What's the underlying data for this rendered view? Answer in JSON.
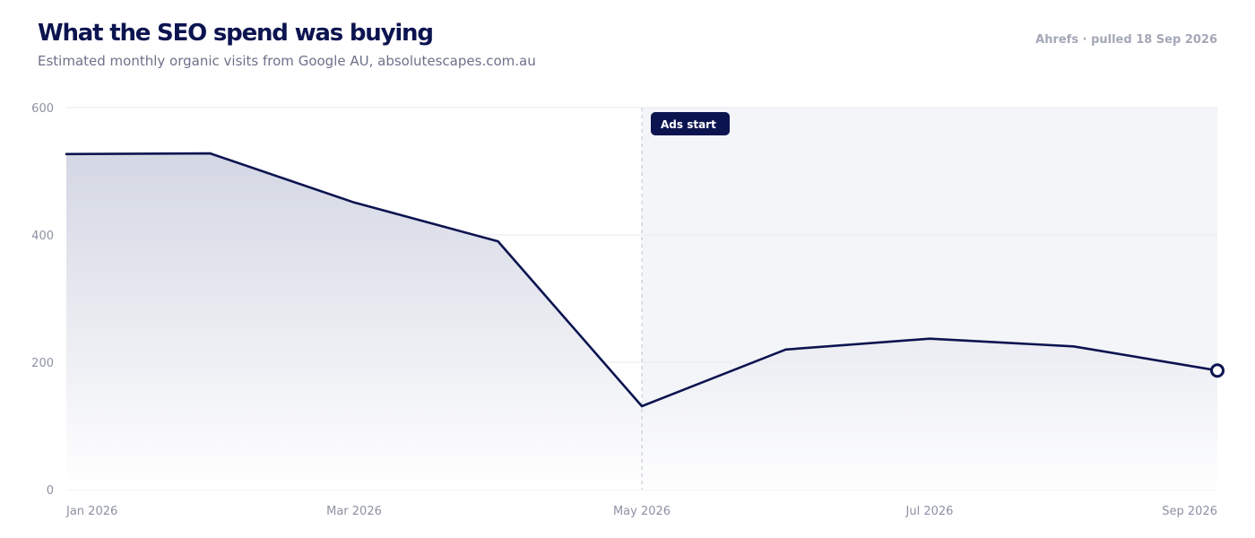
{
  "header": {
    "title": "What the SEO spend was buying",
    "subtitle": "Estimated monthly organic visits from Google AU, absolutescapes.com.au",
    "source": "Ahrefs · pulled 18 Sep 2026"
  },
  "colors": {
    "line": "#0c1450",
    "area_top": "#cfd3e1",
    "area_bottom": "#ffffff",
    "ads_band": "#f3f5f8",
    "grid": "#e9eaef",
    "annotation_bg": "#0c1450",
    "marker_fill": "#ffffff"
  },
  "chart_data": {
    "type": "area",
    "x": [
      "2026-01",
      "2026-02",
      "2026-03",
      "2026-04",
      "2026-05",
      "2026-06",
      "2026-07",
      "2026-08",
      "2026-09"
    ],
    "series": [
      {
        "values": [
          527,
          528,
          451,
          390,
          131,
          220,
          237,
          225,
          187
        ]
      }
    ],
    "x_tick_labels": [
      "Jan 2026",
      "Mar 2026",
      "May 2026",
      "Jul 2026",
      "Sep 2026"
    ],
    "x_tick_index": [
      0,
      2,
      4,
      6,
      8
    ],
    "y_ticks": [
      0,
      200,
      400,
      600
    ],
    "ylim": [
      0,
      600
    ],
    "grid": true,
    "annotations": [
      {
        "label": "Ads start",
        "x_index": 4,
        "shaded_from_here": true
      }
    ],
    "highlight_last_point": true
  }
}
